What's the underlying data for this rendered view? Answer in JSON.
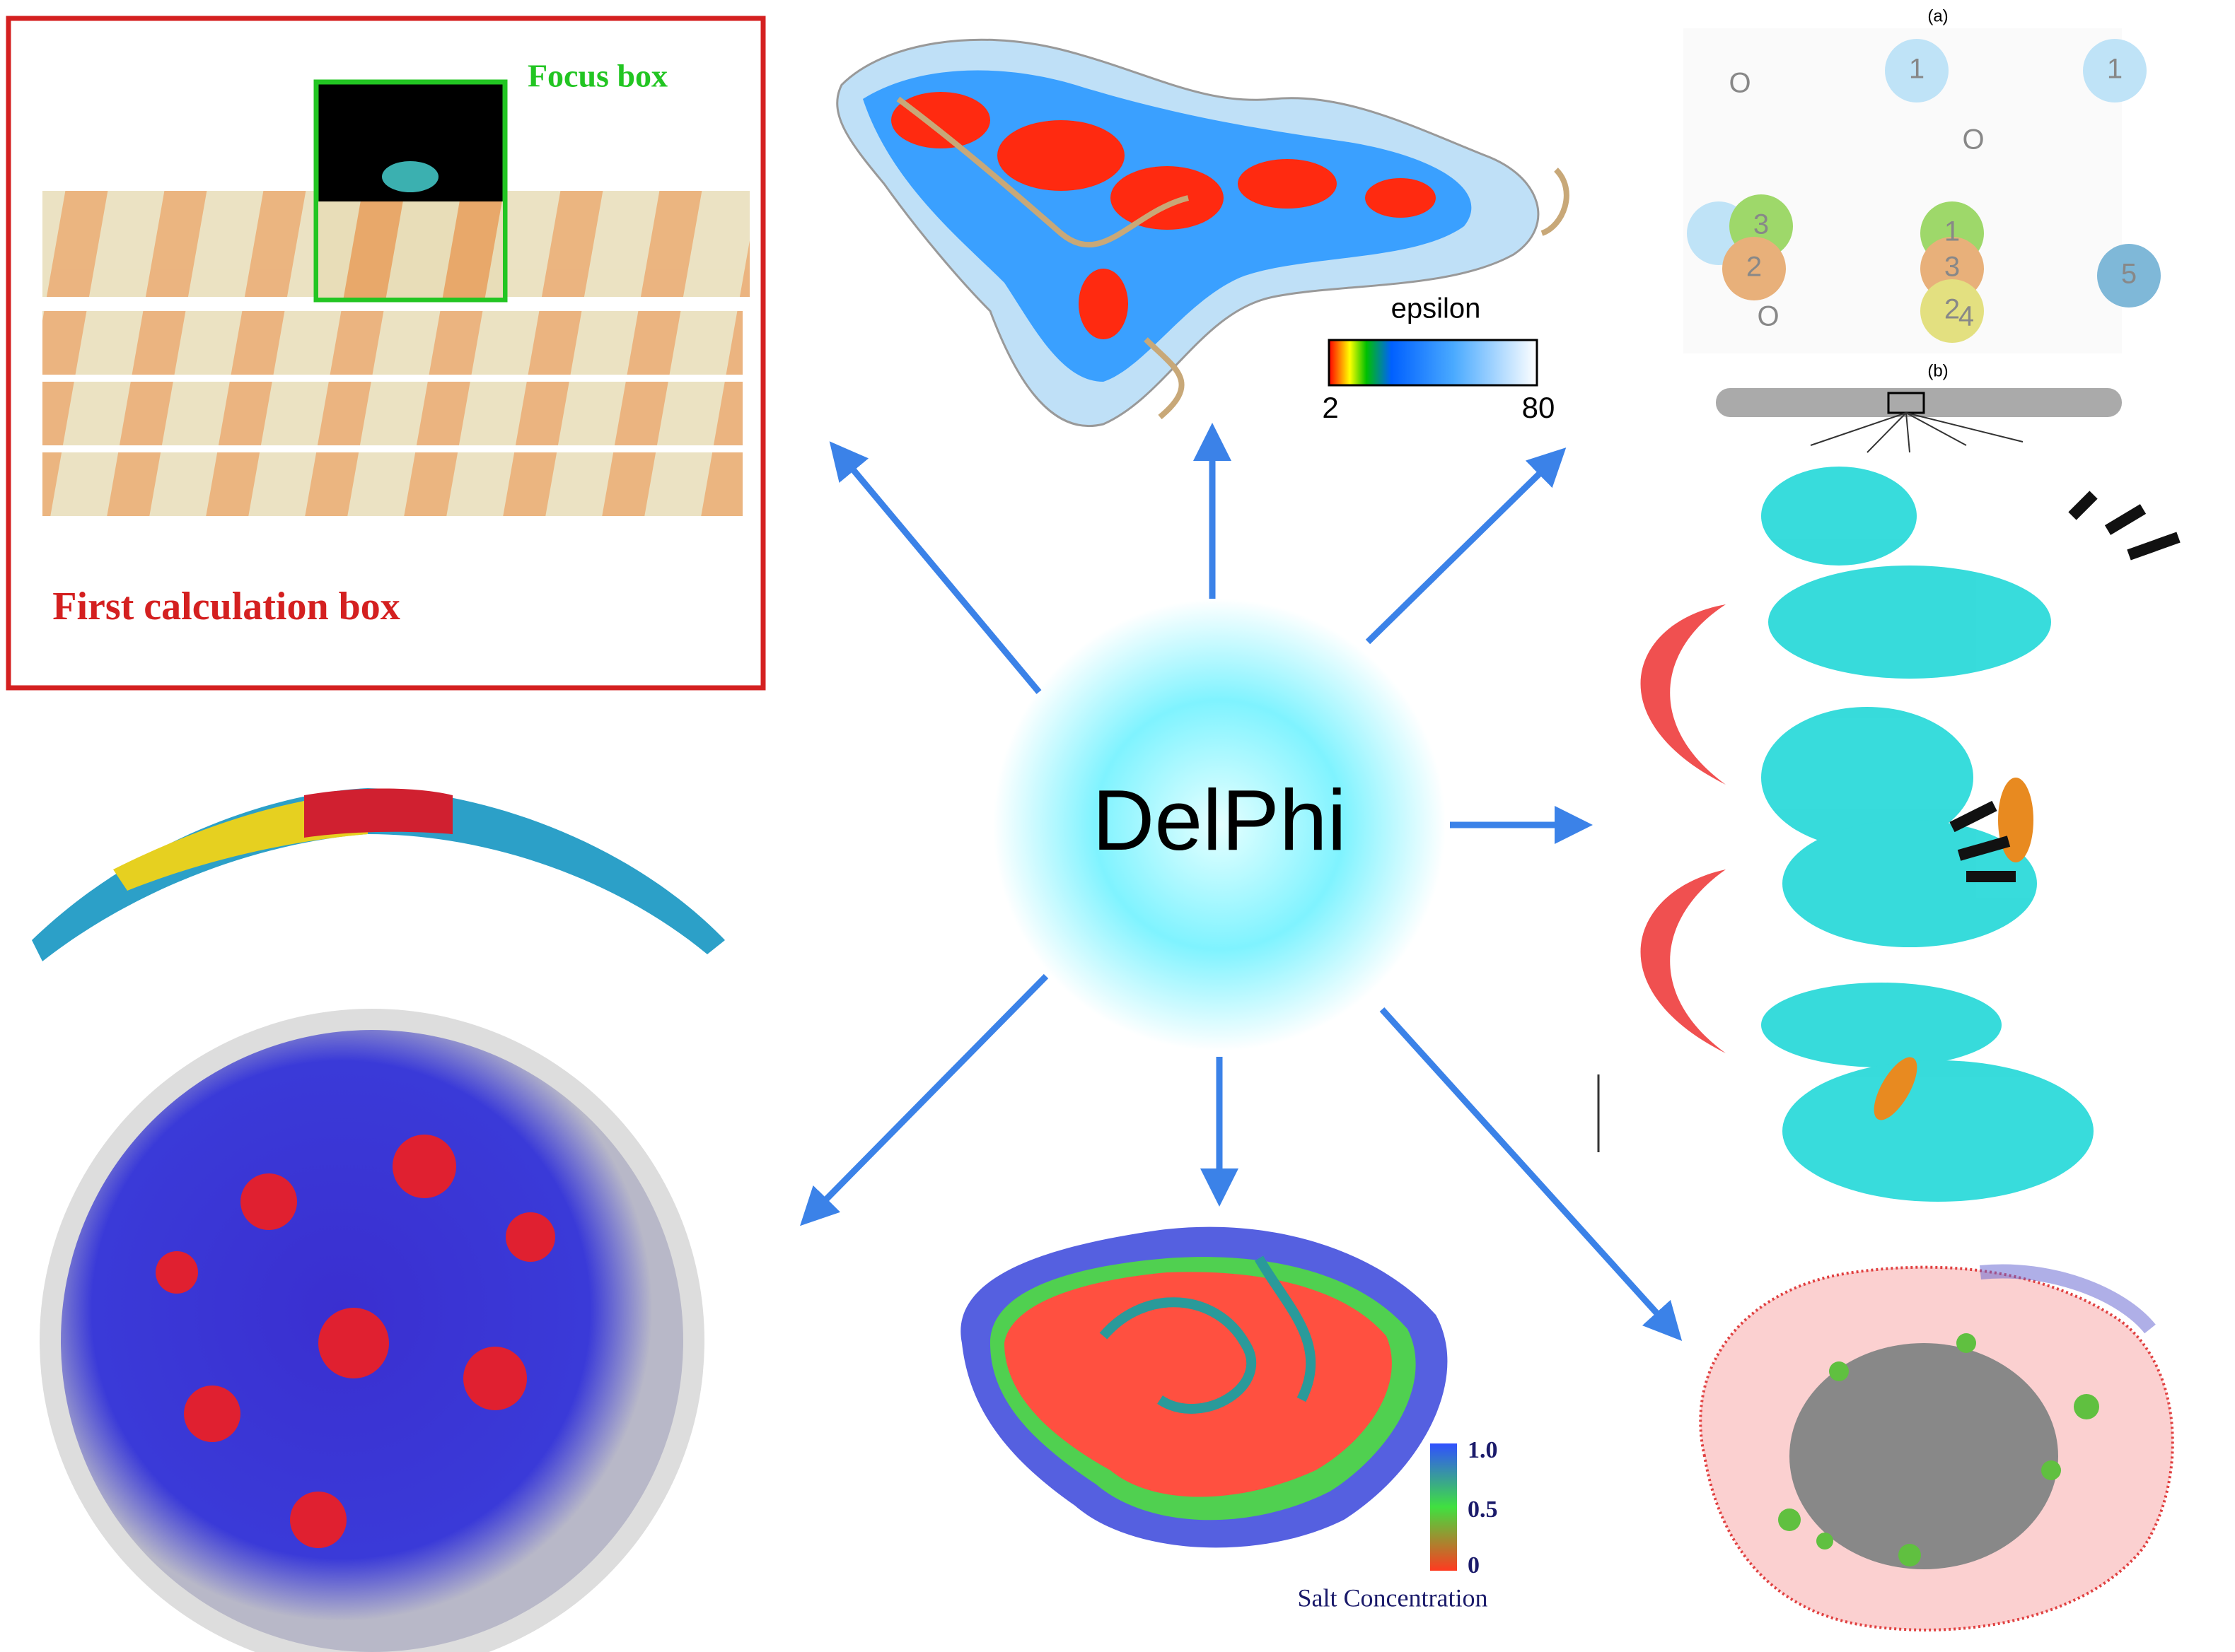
{
  "focus_box": {
    "label": "Focus box"
  },
  "calculation_box": {
    "label": "First calculation box"
  },
  "center": {
    "label": "DelPhi"
  },
  "epsilon_legend": {
    "title": "epsilon",
    "min": "2",
    "max": "80"
  },
  "salt_legend": {
    "title": "Salt Concentration",
    "ticks": [
      "1.0",
      "0.5",
      "0"
    ]
  },
  "grid_diagram": {
    "panel_a": "(a)",
    "panel_b": "(b)",
    "cells": [
      "O",
      "1",
      "O",
      "1",
      "3",
      "2",
      "1",
      "3",
      "2",
      "4",
      "O",
      "5"
    ]
  }
}
